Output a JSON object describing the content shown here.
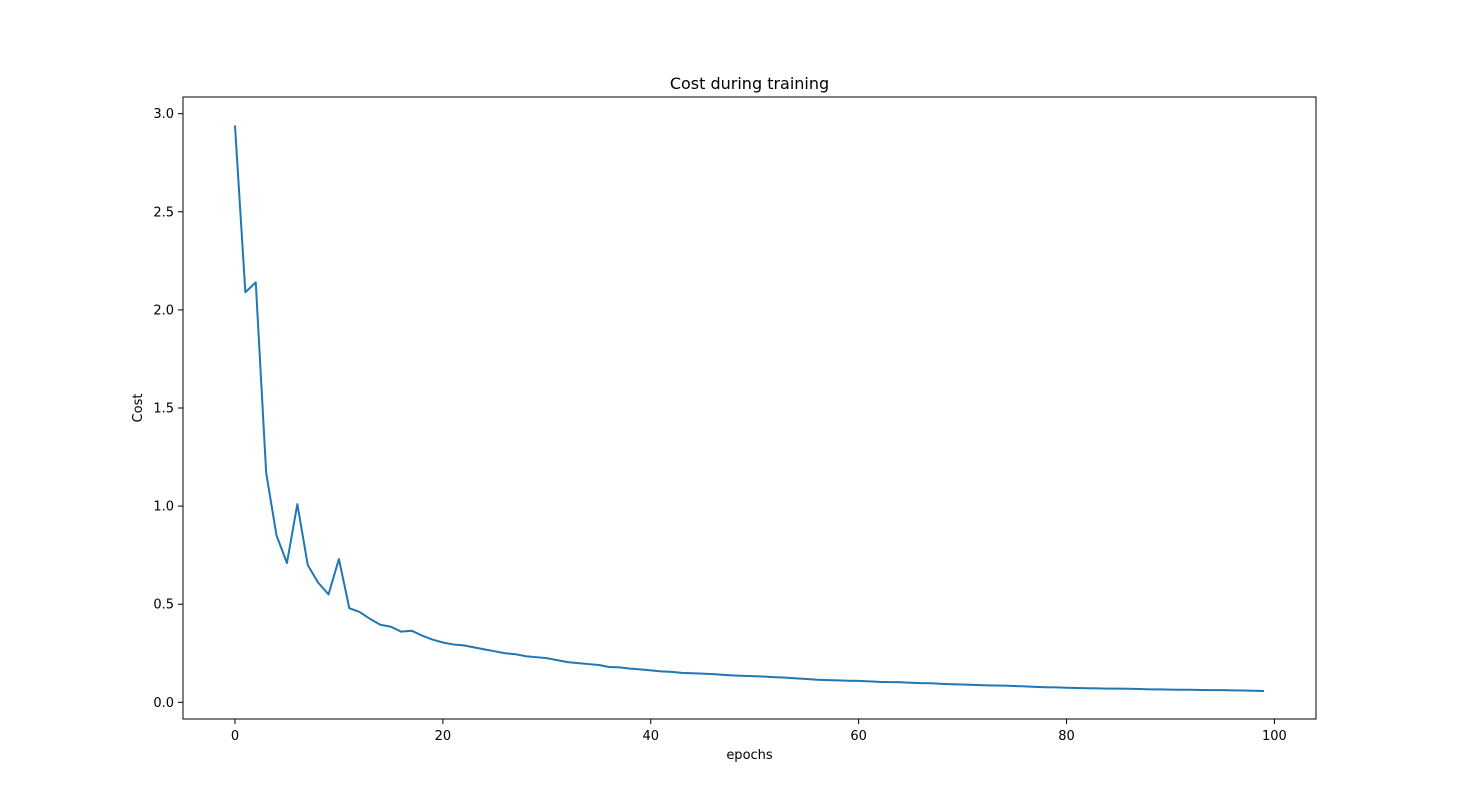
{
  "chart_data": {
    "type": "line",
    "title": "Cost during training",
    "xlabel": "epochs",
    "ylabel": "Cost",
    "xlim": [
      -5,
      104
    ],
    "ylim": [
      -0.085,
      3.085
    ],
    "xticks": [
      0,
      20,
      40,
      60,
      80,
      100
    ],
    "yticks": [
      0.0,
      0.5,
      1.0,
      1.5,
      2.0,
      2.5,
      3.0
    ],
    "xtick_labels": [
      "0",
      "20",
      "40",
      "60",
      "80",
      "100"
    ],
    "ytick_labels": [
      "0.0",
      "0.5",
      "1.0",
      "1.5",
      "2.0",
      "2.5",
      "3.0"
    ],
    "grid": false,
    "line_color": "#1f77b4",
    "series": [
      {
        "x": [
          0,
          1,
          2,
          3,
          4,
          5,
          6,
          7,
          8,
          9,
          10,
          11,
          12,
          13,
          14,
          15,
          16,
          17,
          18,
          19,
          20,
          21,
          22,
          23,
          24,
          25,
          26,
          27,
          28,
          29,
          30,
          31,
          32,
          33,
          34,
          35,
          36,
          37,
          38,
          39,
          40,
          41,
          42,
          43,
          44,
          45,
          46,
          47,
          48,
          49,
          50,
          51,
          52,
          53,
          54,
          55,
          56,
          57,
          58,
          59,
          60,
          61,
          62,
          63,
          64,
          65,
          66,
          67,
          68,
          69,
          70,
          71,
          72,
          73,
          74,
          75,
          76,
          77,
          78,
          79,
          80,
          81,
          82,
          83,
          84,
          85,
          86,
          87,
          88,
          89,
          90,
          91,
          92,
          93,
          94,
          95,
          96,
          97,
          98,
          99
        ],
        "y": [
          2.94,
          2.09,
          2.14,
          1.17,
          0.85,
          0.71,
          1.01,
          0.7,
          0.61,
          0.55,
          0.73,
          0.48,
          0.46,
          0.425,
          0.395,
          0.385,
          0.36,
          0.365,
          0.34,
          0.32,
          0.305,
          0.295,
          0.29,
          0.28,
          0.27,
          0.26,
          0.25,
          0.245,
          0.235,
          0.23,
          0.225,
          0.215,
          0.205,
          0.2,
          0.195,
          0.19,
          0.18,
          0.178,
          0.172,
          0.168,
          0.163,
          0.158,
          0.155,
          0.15,
          0.148,
          0.146,
          0.144,
          0.14,
          0.137,
          0.135,
          0.133,
          0.131,
          0.128,
          0.126,
          0.122,
          0.119,
          0.115,
          0.113,
          0.112,
          0.11,
          0.109,
          0.107,
          0.104,
          0.103,
          0.102,
          0.1,
          0.098,
          0.097,
          0.094,
          0.092,
          0.091,
          0.089,
          0.087,
          0.086,
          0.085,
          0.083,
          0.081,
          0.079,
          0.077,
          0.076,
          0.074,
          0.073,
          0.072,
          0.071,
          0.07,
          0.07,
          0.069,
          0.068,
          0.066,
          0.066,
          0.065,
          0.064,
          0.064,
          0.063,
          0.062,
          0.062,
          0.061,
          0.06,
          0.059,
          0.058
        ]
      }
    ]
  }
}
